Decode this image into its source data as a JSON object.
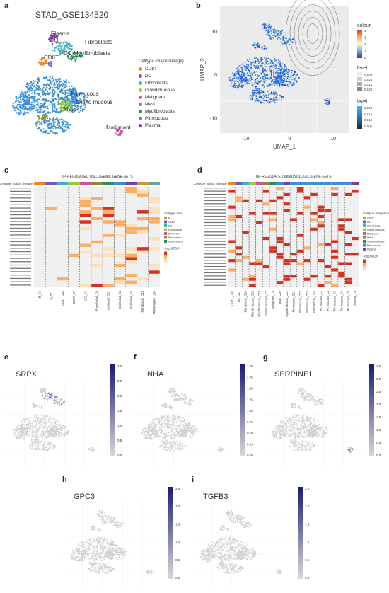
{
  "panel_a": {
    "label": "a",
    "title": "STAD_GSE134520",
    "legend_title": "Celltype (major-lineage)",
    "legend": [
      {
        "name": "CD8T",
        "color": "#e8871e"
      },
      {
        "name": "DC",
        "color": "#6a5acd"
      },
      {
        "name": "Fibroblasts",
        "color": "#3bb3c3"
      },
      {
        "name": "Gland mucous",
        "color": "#9acd32"
      },
      {
        "name": "Malignant",
        "color": "#d64fa0"
      },
      {
        "name": "Mast",
        "color": "#8a8a3a"
      },
      {
        "name": "Myofibroblasts",
        "color": "#2e8b57"
      },
      {
        "name": "Pit mucous",
        "color": "#3a8fd6"
      },
      {
        "name": "Plasma",
        "color": "#7b3fa0"
      }
    ],
    "cluster_labels": [
      "Plasma",
      "Fibroblasts",
      "CD8T",
      "DC",
      "Myofibroblasts",
      "Pit mucous",
      "Gland mucous",
      "Mast",
      "Malignant"
    ]
  },
  "panel_b": {
    "label": "b",
    "xlabel": "UMAP_1",
    "ylabel": "UMAP_2",
    "xticks": [
      "-10",
      "0",
      "10"
    ],
    "yticks": [
      "10",
      "0",
      "-10"
    ],
    "legend_colour_title": "colour",
    "legend_colour_ticks": [
      "4",
      "3",
      "2",
      "1",
      "0"
    ],
    "legend_level1_title": "level",
    "legend_level1_ticks": [
      "0.005",
      "0.010",
      "0.015",
      "0.020"
    ],
    "legend_level2_title": "level",
    "legend_level2_ticks": [
      "0.020",
      "0.015",
      "0.010",
      "0.005"
    ]
  },
  "panel_c": {
    "label": "c",
    "title": "UP-REGULATED ONCOGENIC GENE-SETS",
    "row_header": "Celltype_major_lineage",
    "columns": [
      "B_C6",
      "B_C11",
      "CD8T_C10",
      "CD8T_C7",
      "DC_C5",
      "Endothelial_C8",
      "Epithelial_C12",
      "Epithelial_C4",
      "Epithelial_C9",
      "Fibroblasts_C13",
      "Mono/Macro_C10"
    ],
    "legend_title": "Celltype clus",
    "legend_items": [
      "B",
      "CD8T",
      "DC",
      "Endothelial",
      "Epithelial",
      "Fibroblasts",
      "Mono/Macro"
    ],
    "scale_title": "-log10FDR"
  },
  "panel_d": {
    "label": "d",
    "title": "UP-REGULATED IMMUNOLOGIC GENE-SETS",
    "row_header": "Celltype_major_lineage",
    "columns": [
      "CD8T_C10",
      "DC_C17",
      "Fibroblasts_C18",
      "Gland mucous_C16",
      "Gland mucous_C19",
      "Gland mucous_C7",
      "Malignant_C3",
      "Mast_C20",
      "Myofibroblasts_C22",
      "Pit mucous_C11",
      "Pit mucous_C12",
      "Pit mucous_C14",
      "Pit mucous_C15",
      "Pit mucous_C2",
      "Pit mucous_C4",
      "Pit mucous_C5",
      "Pit mucous_C6",
      "Pit mucous_C8",
      "Plasma_C9"
    ],
    "legend_title": "Celltype major-lineage",
    "legend_items": [
      "CD8T",
      "DC",
      "Fibroblasts",
      "Gland mucous",
      "Malignant",
      "Mast",
      "Myofibroblasts",
      "Pit mucous",
      "Plasma"
    ],
    "scale_title": "-log10FDR"
  },
  "feature_panels": [
    {
      "label": "e",
      "gene": "SRPX",
      "ticks": [
        "3.0",
        "2.5",
        "2.0",
        "1.5",
        "1.0",
        "0.5",
        "0.0"
      ]
    },
    {
      "label": "f",
      "gene": "INHA",
      "ticks": [
        "2.00",
        "1.75",
        "1.50",
        "1.25",
        "1.00",
        "0.75",
        "0.50",
        "0.25",
        "0.00"
      ]
    },
    {
      "label": "g",
      "gene": "SERPINE1",
      "ticks": [
        "3.5",
        "3.0",
        "2.5",
        "2.0",
        "1.5",
        "1.0",
        "0.5",
        "0.0"
      ]
    },
    {
      "label": "h",
      "gene": "GPC3",
      "ticks": [
        "2.5",
        "2.0",
        "1.5",
        "1.0",
        "0.5",
        "0.0"
      ]
    },
    {
      "label": "i",
      "gene": "TGFB3",
      "ticks": [
        "2.5",
        "2.0",
        "1.5",
        "1.0",
        "0.5",
        "0.0"
      ]
    }
  ],
  "colors": {
    "feature_high": "#1a1a7a",
    "feature_low": "#d8d8d8",
    "heat_bg": "#f0f0f0",
    "heat_red": "#d7301f",
    "heat_orange": "#fdae61",
    "heat_light": "#fee0b6"
  }
}
